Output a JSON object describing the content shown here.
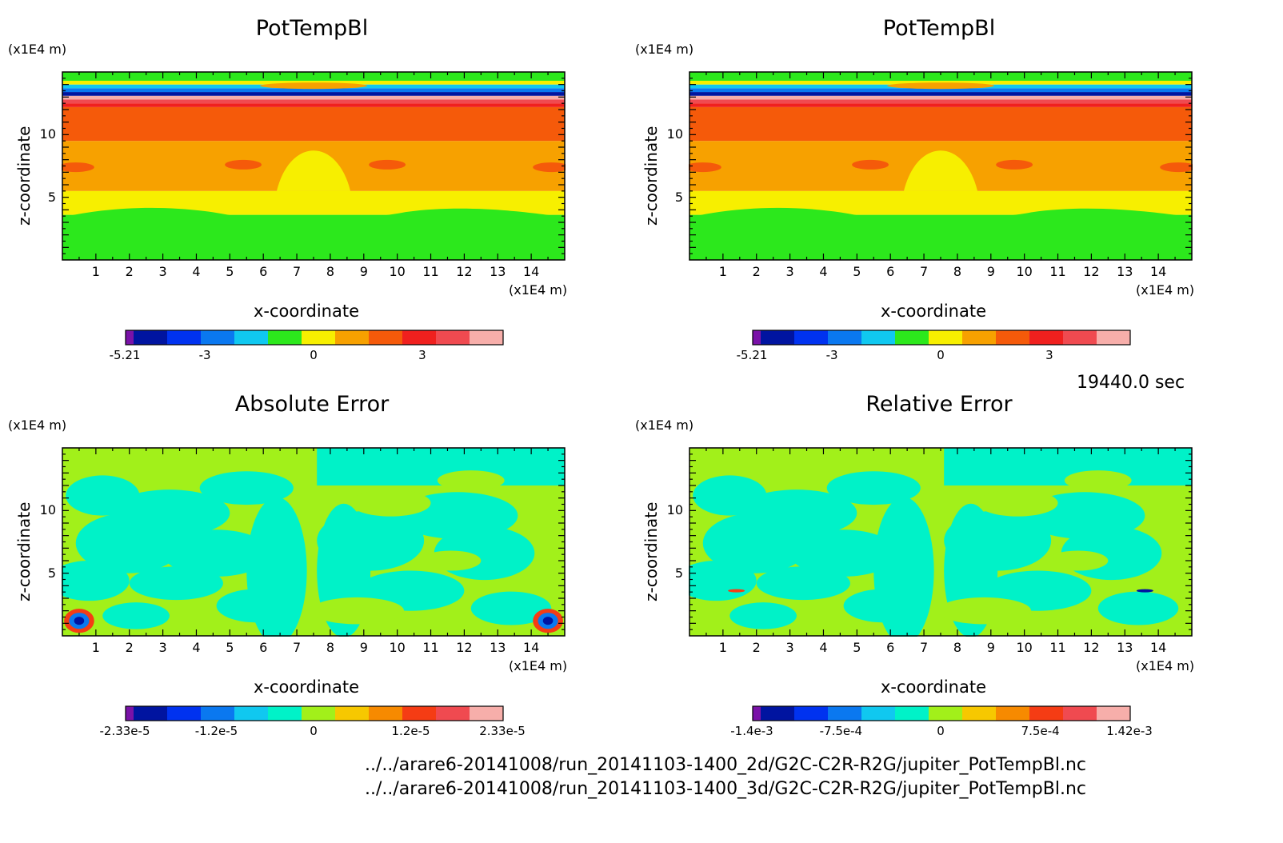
{
  "time_label": "19440.0 sec",
  "files": [
    "../../arare6-20141008/run_20141103-1400_2d/G2C-C2R-R2G/jupiter_PotTempBl.nc",
    "../../arare6-20141008/run_20141103-1400_3d/G2C-C2R-R2G/jupiter_PotTempBl.nc"
  ],
  "colors": {
    "diverging12": [
      "#7a12a8",
      "#0014a0",
      "#0032f0",
      "#0a78f0",
      "#10c8f0",
      "#2ce81c",
      "#f7ef00",
      "#f7a100",
      "#f55a0a",
      "#f0201e",
      "#f04a50",
      "#f7aeaa"
    ],
    "error12": [
      "#7a12a8",
      "#0014a0",
      "#0032f0",
      "#0a78f0",
      "#10c8f0",
      "#00f2c8",
      "#a2f01a",
      "#f7c800",
      "#f78a00",
      "#f53c14",
      "#f04a50",
      "#f7aeaa"
    ]
  },
  "chart_data": [
    {
      "type": "heatmap",
      "title": "PotTempBl",
      "xlabel": "x-coordinate",
      "ylabel": "z-coordinate",
      "x_unit": "(x1E4 m)",
      "y_unit": "(x1E4 m)",
      "xlim": [
        0,
        15
      ],
      "ylim": [
        0,
        15
      ],
      "xticks": [
        "1",
        "2",
        "3",
        "4",
        "5",
        "6",
        "7",
        "8",
        "9",
        "10",
        "11",
        "12",
        "13",
        "14"
      ],
      "yticks": [
        "5",
        "10"
      ],
      "colorbar": {
        "range": [
          -5.21,
          5.21
        ],
        "tick_labels": [
          "-5.21",
          "-3",
          "0",
          "3"
        ],
        "tick_values": [
          -5.21,
          -3,
          0,
          3
        ]
      }
    },
    {
      "type": "heatmap",
      "title": "PotTempBl",
      "xlabel": "x-coordinate",
      "ylabel": "z-coordinate",
      "x_unit": "(x1E4 m)",
      "y_unit": "(x1E4 m)",
      "xlim": [
        0,
        15
      ],
      "ylim": [
        0,
        15
      ],
      "xticks": [
        "1",
        "2",
        "3",
        "4",
        "5",
        "6",
        "7",
        "8",
        "9",
        "10",
        "11",
        "12",
        "13",
        "14"
      ],
      "yticks": [
        "5",
        "10"
      ],
      "colorbar": {
        "range": [
          -5.21,
          5.21
        ],
        "tick_labels": [
          "-5.21",
          "-3",
          "0",
          "3"
        ],
        "tick_values": [
          -5.21,
          -3,
          0,
          3
        ]
      }
    },
    {
      "type": "heatmap",
      "title": "Absolute Error",
      "xlabel": "x-coordinate",
      "ylabel": "z-coordinate",
      "x_unit": "(x1E4 m)",
      "y_unit": "(x1E4 m)",
      "xlim": [
        0,
        15
      ],
      "ylim": [
        0,
        15
      ],
      "xticks": [
        "1",
        "2",
        "3",
        "4",
        "5",
        "6",
        "7",
        "8",
        "9",
        "10",
        "11",
        "12",
        "13",
        "14"
      ],
      "yticks": [
        "5",
        "10"
      ],
      "colorbar": {
        "range": [
          -2.33e-05,
          2.33e-05
        ],
        "tick_labels": [
          "-2.33e-5",
          "-1.2e-5",
          "0",
          "1.2e-5",
          "2.33e-5"
        ],
        "tick_values": [
          -2.33e-05,
          -1.2e-05,
          0,
          1.2e-05,
          2.33e-05
        ]
      }
    },
    {
      "type": "heatmap",
      "title": "Relative Error",
      "xlabel": "x-coordinate",
      "ylabel": "z-coordinate",
      "x_unit": "(x1E4 m)",
      "y_unit": "(x1E4 m)",
      "xlim": [
        0,
        15
      ],
      "ylim": [
        0,
        15
      ],
      "xticks": [
        "1",
        "2",
        "3",
        "4",
        "5",
        "6",
        "7",
        "8",
        "9",
        "10",
        "11",
        "12",
        "13",
        "14"
      ],
      "yticks": [
        "5",
        "10"
      ],
      "colorbar": {
        "range": [
          -0.00142,
          0.00142
        ],
        "tick_labels": [
          "-1.4e-3",
          "-7.5e-4",
          "0",
          "7.5e-4",
          "1.42e-3"
        ],
        "tick_values": [
          -0.00142,
          -0.00075,
          0,
          0.00075,
          0.00142
        ]
      }
    }
  ]
}
